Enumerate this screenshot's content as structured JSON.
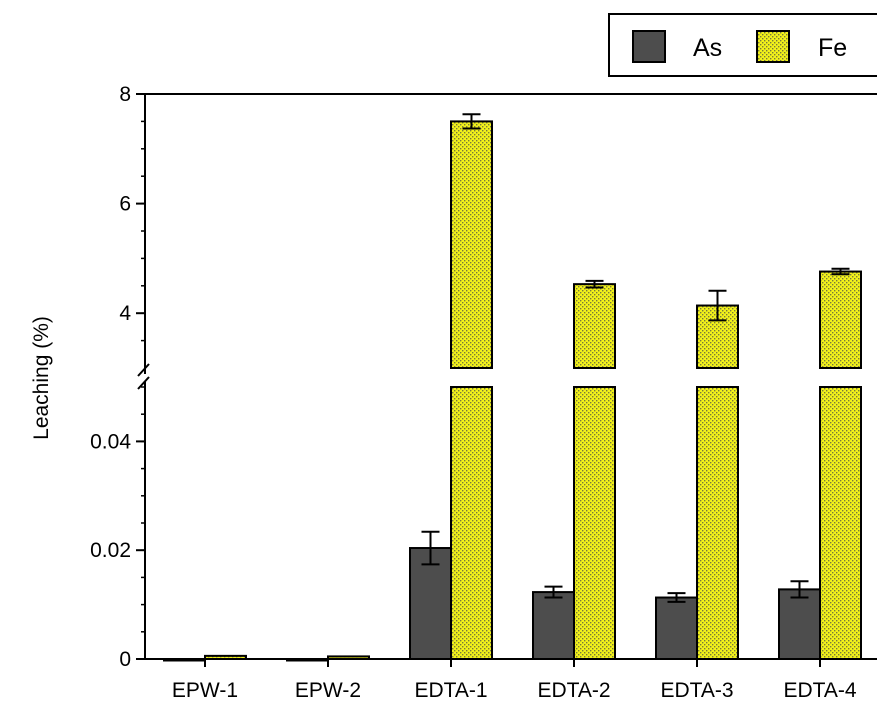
{
  "chart_data": {
    "type": "bar",
    "ylabel": "Leaching (%)",
    "categories": [
      "EPW-1",
      "EPW-2",
      "EDTA-1",
      "EDTA-2",
      "EDTA-3",
      "EDTA-4"
    ],
    "series": [
      {
        "name": "As",
        "values": [
          0.0,
          0.0,
          0.0204,
          0.0123,
          0.0113,
          0.0128
        ],
        "errors": [
          0,
          0,
          0.003,
          0.001,
          0.0008,
          0.0015
        ]
      },
      {
        "name": "Fe",
        "values": [
          0.0003,
          0.0002,
          7.5,
          4.53,
          4.14,
          4.76
        ],
        "errors": [
          0,
          0,
          0.13,
          0.06,
          0.27,
          0.05
        ]
      }
    ],
    "y_axis_break": {
      "lower": {
        "range": [
          0,
          0.05
        ],
        "ticks": [
          0,
          0.02,
          0.04
        ],
        "tick_labels": [
          "0",
          "0.02",
          "0.04"
        ],
        "minor_step": 0.005
      },
      "upper": {
        "range": [
          3,
          8
        ],
        "ticks": [
          4,
          6,
          8
        ],
        "tick_labels": [
          "4",
          "6",
          "8"
        ],
        "minor_step": 0.5
      }
    },
    "legend_position": "top-right",
    "colors": {
      "As": "#4d4d4d",
      "Fe": "#f2f21a",
      "Fe_dots": "#7a7a3a",
      "edge": "#000000"
    }
  }
}
